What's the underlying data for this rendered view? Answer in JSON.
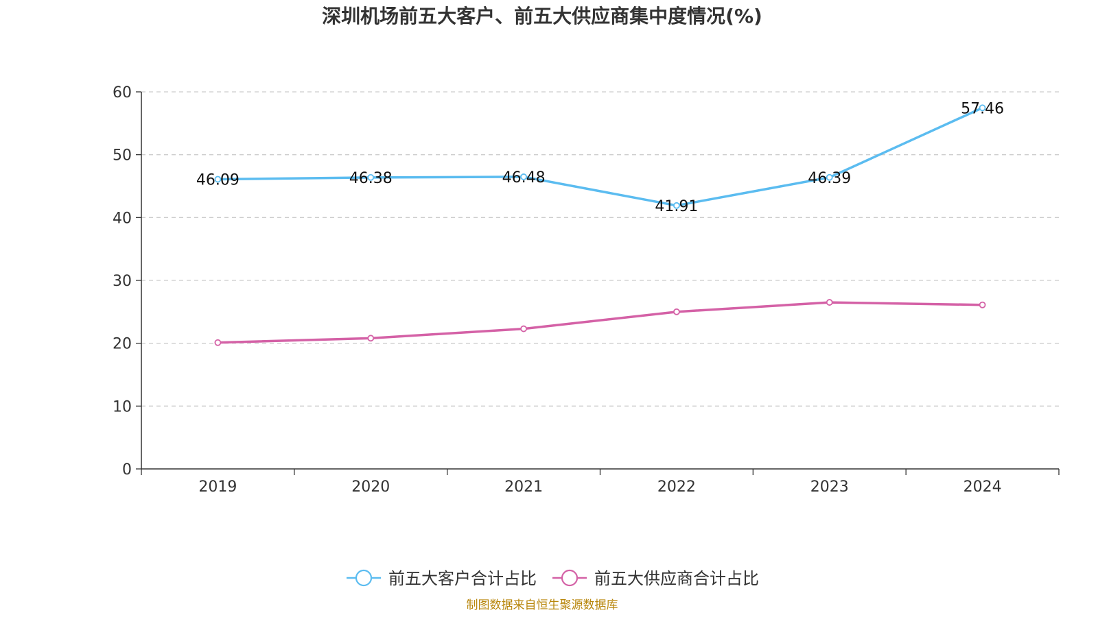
{
  "chart_data": {
    "type": "line",
    "title": "深圳机场前五大客户、前五大供应商集中度情况(%)",
    "categories": [
      "2019",
      "2020",
      "2021",
      "2022",
      "2023",
      "2024"
    ],
    "ylim": [
      0,
      60
    ],
    "yticks": [
      0,
      10,
      20,
      30,
      40,
      50,
      60
    ],
    "grid": true,
    "legend_position": "bottom",
    "series": [
      {
        "name": "前五大客户合计占比",
        "color": "#5bbcf0",
        "values": [
          46.09,
          46.38,
          46.48,
          41.91,
          46.39,
          57.46
        ],
        "labels": [
          "46.09",
          "46.38",
          "46.48",
          "41.91",
          "46.39",
          "57.46"
        ]
      },
      {
        "name": "前五大供应商合计占比",
        "color": "#d461a6",
        "values": [
          20.1,
          20.8,
          22.3,
          25.0,
          26.5,
          26.1
        ]
      }
    ],
    "source": "制图数据来自恒生聚源数据库"
  }
}
